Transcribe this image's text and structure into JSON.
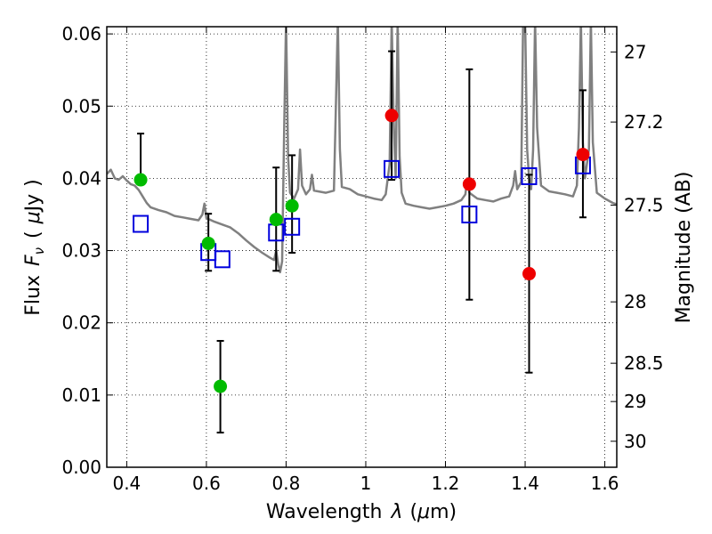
{
  "chart_data": {
    "type": "scatter",
    "title": "",
    "xlabel": {
      "prefix": "Wavelength",
      "symbol": "λ",
      "unit_open": "(",
      "unit_mu": "μ",
      "unit_rest": "m)"
    },
    "ylabel": {
      "prefix": "Flux",
      "symbol": "F",
      "subscript": "ν",
      "unit_open": "(",
      "unit_mu": "μ",
      "unit_rest": "Jy",
      "unit_close": ")"
    },
    "y2label": "Magnitude (AB)",
    "xlim": [
      0.35,
      1.63
    ],
    "ylim": [
      0.0,
      0.061
    ],
    "grid": "dotted",
    "legend": "none",
    "x_ticks": [
      0.4,
      0.6,
      0.8,
      1.0,
      1.2,
      1.4,
      1.6
    ],
    "x_tick_labels": [
      "0.4",
      "0.6",
      "0.8",
      "1",
      "1.2",
      "1.4",
      "1.6"
    ],
    "y_ticks": [
      0.0,
      0.01,
      0.02,
      0.03,
      0.04,
      0.05,
      0.06
    ],
    "y_tick_labels": [
      "0.00",
      "0.01",
      "0.02",
      "0.03",
      "0.04",
      "0.05",
      "0.06"
    ],
    "y2_ticks": [
      {
        "label": "27",
        "flux": 0.0575
      },
      {
        "label": "27.2",
        "flux": 0.0478
      },
      {
        "label": "27.5",
        "flux": 0.0363
      },
      {
        "label": "28",
        "flux": 0.0229
      },
      {
        "label": "28.5",
        "flux": 0.0144
      },
      {
        "label": "29",
        "flux": 0.0091
      },
      {
        "label": "30",
        "flux": 0.0036
      }
    ],
    "series": [
      {
        "marker": "circle",
        "color": "#00bb00",
        "points": [
          {
            "x": 0.435,
            "y": 0.0398,
            "err_low": 0.0398,
            "err_high": 0.0462
          },
          {
            "x": 0.605,
            "y": 0.031,
            "err_low": 0.0272,
            "err_high": 0.0351
          },
          {
            "x": 0.635,
            "y": 0.0112,
            "err_low": 0.0048,
            "err_high": 0.0175
          },
          {
            "x": 0.775,
            "y": 0.0343,
            "err_low": 0.0272,
            "err_high": 0.0415
          },
          {
            "x": 0.815,
            "y": 0.0362,
            "err_low": 0.0297,
            "err_high": 0.0432
          }
        ]
      },
      {
        "marker": "circle",
        "color": "#ee0000",
        "points": [
          {
            "x": 1.065,
            "y": 0.0487,
            "err_low": 0.0398,
            "err_high": 0.0576
          },
          {
            "x": 1.26,
            "y": 0.0392,
            "err_low": 0.0232,
            "err_high": 0.0551
          },
          {
            "x": 1.41,
            "y": 0.0268,
            "err_low": 0.0131,
            "err_high": 0.0405
          },
          {
            "x": 1.545,
            "y": 0.0433,
            "err_low": 0.0346,
            "err_high": 0.0522
          }
        ]
      },
      {
        "marker": "open-square",
        "color": "#0000dd",
        "points": [
          {
            "x": 0.435,
            "y": 0.0337
          },
          {
            "x": 0.605,
            "y": 0.0298
          },
          {
            "x": 0.64,
            "y": 0.0288
          },
          {
            "x": 0.775,
            "y": 0.0325
          },
          {
            "x": 0.815,
            "y": 0.0333
          },
          {
            "x": 1.065,
            "y": 0.0413
          },
          {
            "x": 1.26,
            "y": 0.035
          },
          {
            "x": 1.41,
            "y": 0.0403
          },
          {
            "x": 1.545,
            "y": 0.0418
          }
        ]
      },
      {
        "marker": "line",
        "color": "#808080",
        "points": [
          {
            "x": 0.35,
            "y": 0.0406
          },
          {
            "x": 0.36,
            "y": 0.0412
          },
          {
            "x": 0.37,
            "y": 0.04
          },
          {
            "x": 0.38,
            "y": 0.0398
          },
          {
            "x": 0.39,
            "y": 0.0403
          },
          {
            "x": 0.4,
            "y": 0.0397
          },
          {
            "x": 0.41,
            "y": 0.0392
          },
          {
            "x": 0.42,
            "y": 0.039
          },
          {
            "x": 0.43,
            "y": 0.0384
          },
          {
            "x": 0.44,
            "y": 0.0375
          },
          {
            "x": 0.45,
            "y": 0.0366
          },
          {
            "x": 0.46,
            "y": 0.036
          },
          {
            "x": 0.48,
            "y": 0.0356
          },
          {
            "x": 0.5,
            "y": 0.0353
          },
          {
            "x": 0.52,
            "y": 0.0348
          },
          {
            "x": 0.54,
            "y": 0.0346
          },
          {
            "x": 0.56,
            "y": 0.0344
          },
          {
            "x": 0.58,
            "y": 0.0342
          },
          {
            "x": 0.59,
            "y": 0.035
          },
          {
            "x": 0.595,
            "y": 0.0365
          },
          {
            "x": 0.6,
            "y": 0.0345
          },
          {
            "x": 0.62,
            "y": 0.034
          },
          {
            "x": 0.64,
            "y": 0.0336
          },
          {
            "x": 0.66,
            "y": 0.0332
          },
          {
            "x": 0.68,
            "y": 0.0324
          },
          {
            "x": 0.7,
            "y": 0.0314
          },
          {
            "x": 0.72,
            "y": 0.0305
          },
          {
            "x": 0.74,
            "y": 0.0297
          },
          {
            "x": 0.76,
            "y": 0.029
          },
          {
            "x": 0.77,
            "y": 0.0287
          },
          {
            "x": 0.775,
            "y": 0.03
          },
          {
            "x": 0.78,
            "y": 0.0282
          },
          {
            "x": 0.785,
            "y": 0.027
          },
          {
            "x": 0.79,
            "y": 0.0285
          },
          {
            "x": 0.795,
            "y": 0.046
          },
          {
            "x": 0.8,
            "y": 0.062
          },
          {
            "x": 0.805,
            "y": 0.043
          },
          {
            "x": 0.81,
            "y": 0.038
          },
          {
            "x": 0.82,
            "y": 0.0372
          },
          {
            "x": 0.83,
            "y": 0.0385
          },
          {
            "x": 0.835,
            "y": 0.044
          },
          {
            "x": 0.84,
            "y": 0.039
          },
          {
            "x": 0.85,
            "y": 0.0378
          },
          {
            "x": 0.86,
            "y": 0.0385
          },
          {
            "x": 0.865,
            "y": 0.0405
          },
          {
            "x": 0.87,
            "y": 0.0383
          },
          {
            "x": 0.88,
            "y": 0.0382
          },
          {
            "x": 0.9,
            "y": 0.038
          },
          {
            "x": 0.92,
            "y": 0.0383
          },
          {
            "x": 0.925,
            "y": 0.05
          },
          {
            "x": 0.93,
            "y": 0.062
          },
          {
            "x": 0.935,
            "y": 0.044
          },
          {
            "x": 0.94,
            "y": 0.0388
          },
          {
            "x": 0.96,
            "y": 0.0385
          },
          {
            "x": 0.98,
            "y": 0.0378
          },
          {
            "x": 1.0,
            "y": 0.0375
          },
          {
            "x": 1.02,
            "y": 0.0372
          },
          {
            "x": 1.04,
            "y": 0.037
          },
          {
            "x": 1.05,
            "y": 0.0378
          },
          {
            "x": 1.06,
            "y": 0.042
          },
          {
            "x": 1.065,
            "y": 0.062
          },
          {
            "x": 1.07,
            "y": 0.048
          },
          {
            "x": 1.075,
            "y": 0.04
          },
          {
            "x": 1.08,
            "y": 0.062
          },
          {
            "x": 1.085,
            "y": 0.043
          },
          {
            "x": 1.09,
            "y": 0.038
          },
          {
            "x": 1.1,
            "y": 0.0365
          },
          {
            "x": 1.12,
            "y": 0.0362
          },
          {
            "x": 1.14,
            "y": 0.036
          },
          {
            "x": 1.16,
            "y": 0.0358
          },
          {
            "x": 1.18,
            "y": 0.036
          },
          {
            "x": 1.2,
            "y": 0.0362
          },
          {
            "x": 1.22,
            "y": 0.0365
          },
          {
            "x": 1.24,
            "y": 0.037
          },
          {
            "x": 1.25,
            "y": 0.0378
          },
          {
            "x": 1.255,
            "y": 0.04
          },
          {
            "x": 1.26,
            "y": 0.038
          },
          {
            "x": 1.28,
            "y": 0.0372
          },
          {
            "x": 1.3,
            "y": 0.037
          },
          {
            "x": 1.32,
            "y": 0.0368
          },
          {
            "x": 1.34,
            "y": 0.0372
          },
          {
            "x": 1.36,
            "y": 0.0375
          },
          {
            "x": 1.37,
            "y": 0.039
          },
          {
            "x": 1.375,
            "y": 0.041
          },
          {
            "x": 1.38,
            "y": 0.0385
          },
          {
            "x": 1.39,
            "y": 0.0395
          },
          {
            "x": 1.395,
            "y": 0.062
          },
          {
            "x": 1.4,
            "y": 0.062
          },
          {
            "x": 1.405,
            "y": 0.044
          },
          {
            "x": 1.41,
            "y": 0.04
          },
          {
            "x": 1.415,
            "y": 0.0385
          },
          {
            "x": 1.42,
            "y": 0.044
          },
          {
            "x": 1.425,
            "y": 0.062
          },
          {
            "x": 1.43,
            "y": 0.047
          },
          {
            "x": 1.44,
            "y": 0.039
          },
          {
            "x": 1.46,
            "y": 0.0382
          },
          {
            "x": 1.48,
            "y": 0.038
          },
          {
            "x": 1.5,
            "y": 0.0378
          },
          {
            "x": 1.52,
            "y": 0.0375
          },
          {
            "x": 1.53,
            "y": 0.039
          },
          {
            "x": 1.535,
            "y": 0.047
          },
          {
            "x": 1.54,
            "y": 0.062
          },
          {
            "x": 1.545,
            "y": 0.045
          },
          {
            "x": 1.55,
            "y": 0.04
          },
          {
            "x": 1.56,
            "y": 0.044
          },
          {
            "x": 1.565,
            "y": 0.062
          },
          {
            "x": 1.57,
            "y": 0.045
          },
          {
            "x": 1.58,
            "y": 0.038
          },
          {
            "x": 1.6,
            "y": 0.0372
          },
          {
            "x": 1.62,
            "y": 0.0366
          },
          {
            "x": 1.63,
            "y": 0.0364
          }
        ]
      }
    ]
  }
}
